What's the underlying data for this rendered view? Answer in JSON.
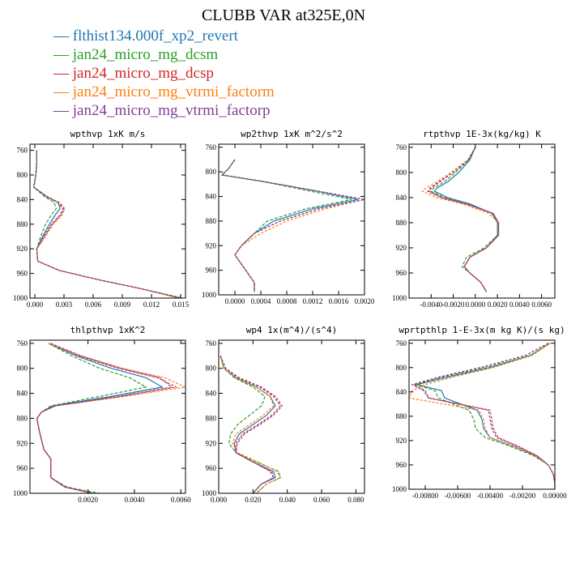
{
  "figure": {
    "title": "CLUBB VAR at325E,0N"
  },
  "legend": [
    {
      "name": "flthist134.000f_xp2_revert",
      "color": "#1f77b4",
      "marker": "—"
    },
    {
      "name": "jan24_micro_mg_dcsm",
      "color": "#2ca02c",
      "marker": "—"
    },
    {
      "name": "jan24_micro_mg_dcsp",
      "color": "#d62728",
      "marker": "—"
    },
    {
      "name": "jan24_micro_mg_vtrmi_factorm",
      "color": "#ff7f0e",
      "marker": "—"
    },
    {
      "name": "jan24_micro_mg_vtrmi_factorp",
      "color": "#7f3f98",
      "marker": "—"
    }
  ],
  "chart_data": [
    {
      "type": "line",
      "title": "wpthvp  1xK m/s",
      "xlim": [
        -0.0005,
        0.0155
      ],
      "ylim": [
        1000,
        750
      ],
      "xticks": [
        0.0,
        0.003,
        0.006,
        0.009,
        0.012,
        0.015
      ],
      "xtick_labels": [
        "0.000",
        "0.003",
        "0.006",
        "0.009",
        "0.012",
        "0.015"
      ],
      "yticks": [
        760,
        800,
        840,
        880,
        920,
        960,
        1000
      ],
      "ytick_labels": [
        "760",
        "800",
        "840",
        "880",
        "920",
        "960",
        "1000"
      ],
      "y": [
        760,
        780,
        800,
        820,
        835,
        845,
        855,
        865,
        880,
        900,
        920,
        940,
        955,
        970,
        985,
        1000
      ],
      "series": [
        {
          "values": [
            0.0002,
            0.0002,
            0.0001,
            -0.0001,
            0.0012,
            0.0024,
            0.0026,
            0.0021,
            0.0015,
            0.0008,
            0.0002,
            0.0003,
            0.0025,
            0.0065,
            0.011,
            0.015
          ]
        },
        {
          "values": [
            0.0002,
            0.0002,
            0.0001,
            -0.0001,
            0.001,
            0.002,
            0.0022,
            0.0017,
            0.0011,
            0.0006,
            0.0002,
            0.0003,
            0.0025,
            0.0065,
            0.011,
            0.0152
          ]
        },
        {
          "values": [
            0.0002,
            0.0002,
            0.0001,
            -0.0001,
            0.0012,
            0.0025,
            0.003,
            0.0027,
            0.0018,
            0.001,
            0.0002,
            0.0003,
            0.0025,
            0.0065,
            0.011,
            0.0149
          ]
        },
        {
          "values": [
            0.0002,
            0.0002,
            0.0001,
            -0.0001,
            0.0013,
            0.0026,
            0.0031,
            0.0028,
            0.0019,
            0.0011,
            0.0002,
            0.0003,
            0.0025,
            0.0065,
            0.011,
            0.0148
          ]
        },
        {
          "values": [
            0.0002,
            0.0002,
            0.0001,
            -0.0001,
            0.0012,
            0.0024,
            0.0029,
            0.0026,
            0.0017,
            0.0009,
            0.0002,
            0.0003,
            0.0025,
            0.0065,
            0.011,
            0.0149
          ]
        }
      ]
    },
    {
      "type": "line",
      "title": "wp2thvp  1xK m^2/s^2",
      "xlim": [
        -0.00025,
        0.002
      ],
      "ylim": [
        1000,
        755
      ],
      "xticks": [
        0.0,
        0.0004,
        0.0008,
        0.0012,
        0.0016,
        0.002
      ],
      "xtick_labels": [
        "0.0000",
        "0.0004",
        "0.0008",
        "0.0012",
        "0.0016",
        "0.0020"
      ],
      "yticks": [
        760,
        800,
        840,
        880,
        920,
        960,
        1000
      ],
      "ytick_labels": [
        "760",
        "800",
        "840",
        "880",
        "920",
        "960",
        "1000"
      ],
      "y": [
        780,
        795,
        805,
        815,
        830,
        845,
        860,
        880,
        900,
        920,
        935,
        950,
        965,
        980,
        995
      ],
      "series": [
        {
          "values": [
            0.0,
            -0.0001,
            -0.0002,
            0.0004,
            0.0012,
            0.0019,
            0.0012,
            0.0006,
            0.0003,
            0.0001,
            0.0,
            0.0001,
            0.0002,
            0.0003,
            0.0003
          ]
        },
        {
          "values": [
            0.0,
            -0.0001,
            -0.0002,
            0.0004,
            0.0011,
            0.0018,
            0.0011,
            0.0005,
            0.0003,
            0.0001,
            0.0,
            0.0001,
            0.0002,
            0.0003,
            0.0003
          ]
        },
        {
          "values": [
            0.0,
            -0.0001,
            -0.0002,
            0.0004,
            0.0012,
            0.002,
            0.0013,
            0.0007,
            0.0003,
            0.0001,
            0.0,
            0.0001,
            0.0002,
            0.0003,
            0.0003
          ]
        },
        {
          "values": [
            0.0,
            -0.0001,
            -0.0002,
            0.0004,
            0.0012,
            0.002,
            0.0014,
            0.0008,
            0.0004,
            0.0001,
            0.0,
            0.0001,
            0.0002,
            0.0003,
            0.0003
          ]
        },
        {
          "values": [
            0.0,
            -0.0001,
            -0.0002,
            0.0004,
            0.0012,
            0.002,
            0.0013,
            0.0007,
            0.0003,
            0.0001,
            0.0,
            0.0001,
            0.0002,
            0.0003,
            0.0003
          ]
        }
      ]
    },
    {
      "type": "line",
      "title": "rtpthvp  1E-3x(kg/kg) K",
      "xlim": [
        -0.006,
        0.0072
      ],
      "ylim": [
        1000,
        755
      ],
      "xticks": [
        -0.004,
        -0.002,
        0.0,
        0.002,
        0.004,
        0.006
      ],
      "xtick_labels": [
        "-0.0040",
        "-0.0020",
        "0.0000",
        "0.0020",
        "0.0040",
        "0.0060"
      ],
      "yticks": [
        760,
        800,
        840,
        880,
        920,
        960,
        1000
      ],
      "ytick_labels": [
        "760",
        "800",
        "840",
        "880",
        "920",
        "960",
        "1000"
      ],
      "y": [
        760,
        780,
        800,
        815,
        825,
        830,
        840,
        850,
        865,
        880,
        900,
        920,
        935,
        950,
        960,
        975,
        990
      ],
      "series": [
        {
          "values": [
            0.0,
            -0.0005,
            -0.0015,
            -0.0025,
            -0.0035,
            -0.0037,
            -0.0025,
            -0.0005,
            0.0015,
            0.002,
            0.002,
            0.001,
            -0.0005,
            -0.001,
            -0.0005,
            0.0005,
            0.001
          ]
        },
        {
          "values": [
            0.0,
            -0.0006,
            -0.0018,
            -0.0028,
            -0.0038,
            -0.004,
            -0.0028,
            -0.0008,
            0.0015,
            0.002,
            0.002,
            0.0008,
            -0.0008,
            -0.0012,
            -0.0005,
            0.0005,
            0.001
          ]
        },
        {
          "values": [
            0.0,
            -0.0006,
            -0.002,
            -0.0032,
            -0.004,
            -0.0042,
            -0.003,
            -0.0008,
            0.0016,
            0.0021,
            0.0021,
            0.001,
            -0.0005,
            -0.001,
            -0.0005,
            0.0005,
            0.001
          ]
        },
        {
          "values": [
            0.0,
            -0.0007,
            -0.0022,
            -0.0035,
            -0.0045,
            -0.0048,
            -0.0035,
            -0.0012,
            0.0012,
            0.0021,
            0.0021,
            0.001,
            -0.0005,
            -0.001,
            -0.0005,
            0.0005,
            0.001
          ]
        },
        {
          "values": [
            0.0,
            -0.0006,
            -0.002,
            -0.0033,
            -0.0041,
            -0.0043,
            -0.0031,
            -0.0009,
            0.0016,
            0.0021,
            0.0021,
            0.001,
            -0.0005,
            -0.001,
            -0.0005,
            0.0005,
            0.001
          ]
        }
      ]
    },
    {
      "type": "line",
      "title": "thlpthvp  1xK^2",
      "xlim": [
        -0.0005,
        0.0062
      ],
      "ylim": [
        1000,
        755
      ],
      "xticks": [
        0.002,
        0.004,
        0.006
      ],
      "xtick_labels": [
        "0.0020",
        "0.0040",
        "0.0060"
      ],
      "yticks": [
        760,
        800,
        840,
        880,
        920,
        960,
        1000
      ],
      "ytick_labels": [
        "760",
        "800",
        "840",
        "880",
        "920",
        "960",
        "1000"
      ],
      "y": [
        760,
        780,
        800,
        815,
        830,
        845,
        860,
        870,
        880,
        900,
        930,
        945,
        960,
        975,
        990,
        1000
      ],
      "series": [
        {
          "values": [
            0.0003,
            0.0015,
            0.003,
            0.0045,
            0.0052,
            0.003,
            0.0005,
            0.0,
            -0.0002,
            -0.0001,
            0.0001,
            0.0004,
            0.0004,
            0.0004,
            0.001,
            0.0022
          ]
        },
        {
          "values": [
            0.0003,
            0.0013,
            0.0025,
            0.0038,
            0.0045,
            0.0025,
            0.0004,
            0.0,
            -0.0002,
            -0.0001,
            0.0001,
            0.0004,
            0.0004,
            0.0004,
            0.0011,
            0.0025
          ]
        },
        {
          "values": [
            0.0003,
            0.0016,
            0.0033,
            0.005,
            0.0058,
            0.0034,
            0.0006,
            0.0,
            -0.0002,
            -0.0001,
            0.0001,
            0.0004,
            0.0004,
            0.0004,
            0.001,
            0.0022
          ]
        },
        {
          "values": [
            0.0003,
            0.0017,
            0.0035,
            0.0053,
            0.0062,
            0.0036,
            0.0006,
            0.0,
            -0.0002,
            -0.0001,
            0.0001,
            0.0004,
            0.0004,
            0.0004,
            0.001,
            0.0022
          ]
        },
        {
          "values": [
            0.0004,
            0.0017,
            0.0034,
            0.0051,
            0.0056,
            0.0033,
            0.0006,
            0.0,
            -0.0002,
            -0.0001,
            0.0001,
            0.0004,
            0.0004,
            0.0004,
            0.001,
            0.0022
          ]
        }
      ]
    },
    {
      "type": "line",
      "title": "wp4  1x(m^4)/(s^4)",
      "xlim": [
        0.0,
        0.085
      ],
      "ylim": [
        1000,
        755
      ],
      "xticks": [
        0.0,
        0.02,
        0.04,
        0.06,
        0.08
      ],
      "xtick_labels": [
        "0.000",
        "0.020",
        "0.040",
        "0.060",
        "0.080"
      ],
      "yticks": [
        760,
        800,
        840,
        880,
        920,
        960,
        1000
      ],
      "ytick_labels": [
        "760",
        "800",
        "840",
        "880",
        "920",
        "960",
        "1000"
      ],
      "y": [
        780,
        800,
        815,
        830,
        845,
        860,
        875,
        890,
        905,
        920,
        935,
        950,
        965,
        975,
        985,
        1000
      ],
      "series": [
        {
          "values": [
            0.001,
            0.003,
            0.01,
            0.022,
            0.03,
            0.033,
            0.028,
            0.02,
            0.012,
            0.009,
            0.01,
            0.02,
            0.032,
            0.033,
            0.025,
            0.02
          ]
        },
        {
          "values": [
            0.001,
            0.003,
            0.009,
            0.02,
            0.027,
            0.025,
            0.018,
            0.011,
            0.007,
            0.006,
            0.01,
            0.022,
            0.035,
            0.036,
            0.028,
            0.022
          ]
        },
        {
          "values": [
            0.001,
            0.004,
            0.011,
            0.024,
            0.032,
            0.036,
            0.031,
            0.023,
            0.014,
            0.01,
            0.01,
            0.02,
            0.031,
            0.032,
            0.025,
            0.02
          ]
        },
        {
          "values": [
            0.001,
            0.003,
            0.01,
            0.022,
            0.03,
            0.032,
            0.026,
            0.018,
            0.01,
            0.008,
            0.011,
            0.023,
            0.034,
            0.036,
            0.028,
            0.022
          ]
        },
        {
          "values": [
            0.001,
            0.004,
            0.012,
            0.025,
            0.033,
            0.037,
            0.032,
            0.024,
            0.015,
            0.011,
            0.01,
            0.02,
            0.03,
            0.032,
            0.025,
            0.02
          ]
        }
      ]
    },
    {
      "type": "line",
      "title": "wprtpthlp  1-E-3x(m kg K)/(s kg)",
      "xlim": [
        -0.009,
        0.0
      ],
      "ylim": [
        1000,
        755
      ],
      "xticks": [
        -0.008,
        -0.006,
        -0.004,
        -0.002,
        0.0
      ],
      "xtick_labels": [
        "-0.00800",
        "-0.00600",
        "-0.00400",
        "-0.00200",
        "0.00000"
      ],
      "yticks": [
        760,
        800,
        840,
        880,
        920,
        960,
        1000
      ],
      "ytick_labels": [
        "760",
        "800",
        "840",
        "880",
        "920",
        "960",
        "1000"
      ],
      "y": [
        760,
        780,
        800,
        815,
        828,
        838,
        850,
        870,
        885,
        900,
        915,
        930,
        945,
        960,
        975,
        990,
        1000
      ],
      "series": [
        {
          "values": [
            -0.0003,
            -0.0015,
            -0.004,
            -0.0065,
            -0.0085,
            -0.007,
            -0.0068,
            -0.0048,
            -0.0045,
            -0.0044,
            -0.004,
            -0.0025,
            -0.0012,
            -0.0004,
            -0.0001,
            0.0,
            0.0
          ]
        },
        {
          "values": [
            -0.0003,
            -0.0015,
            -0.0042,
            -0.0068,
            -0.0086,
            -0.0074,
            -0.0072,
            -0.0053,
            -0.005,
            -0.0049,
            -0.0043,
            -0.0027,
            -0.0013,
            -0.0004,
            -0.0001,
            0.0,
            0.0
          ]
        },
        {
          "values": [
            -0.0004,
            -0.0018,
            -0.0045,
            -0.007,
            -0.0087,
            -0.008,
            -0.0078,
            -0.004,
            -0.0039,
            -0.0038,
            -0.0035,
            -0.0022,
            -0.0011,
            -0.0004,
            -0.0001,
            0.0,
            0.0
          ]
        },
        {
          "values": [
            -0.0003,
            -0.0014,
            -0.0038,
            -0.0062,
            -0.008,
            -0.0088,
            -0.009,
            -0.0047,
            -0.0044,
            -0.0043,
            -0.004,
            -0.0025,
            -0.0012,
            -0.0004,
            -0.0001,
            0.0,
            0.0
          ]
        },
        {
          "values": [
            -0.0004,
            -0.0018,
            -0.0046,
            -0.0071,
            -0.0088,
            -0.0081,
            -0.0078,
            -0.0041,
            -0.004,
            -0.0039,
            -0.0036,
            -0.0023,
            -0.0011,
            -0.0004,
            -0.0001,
            0.0,
            0.0
          ]
        }
      ]
    }
  ]
}
